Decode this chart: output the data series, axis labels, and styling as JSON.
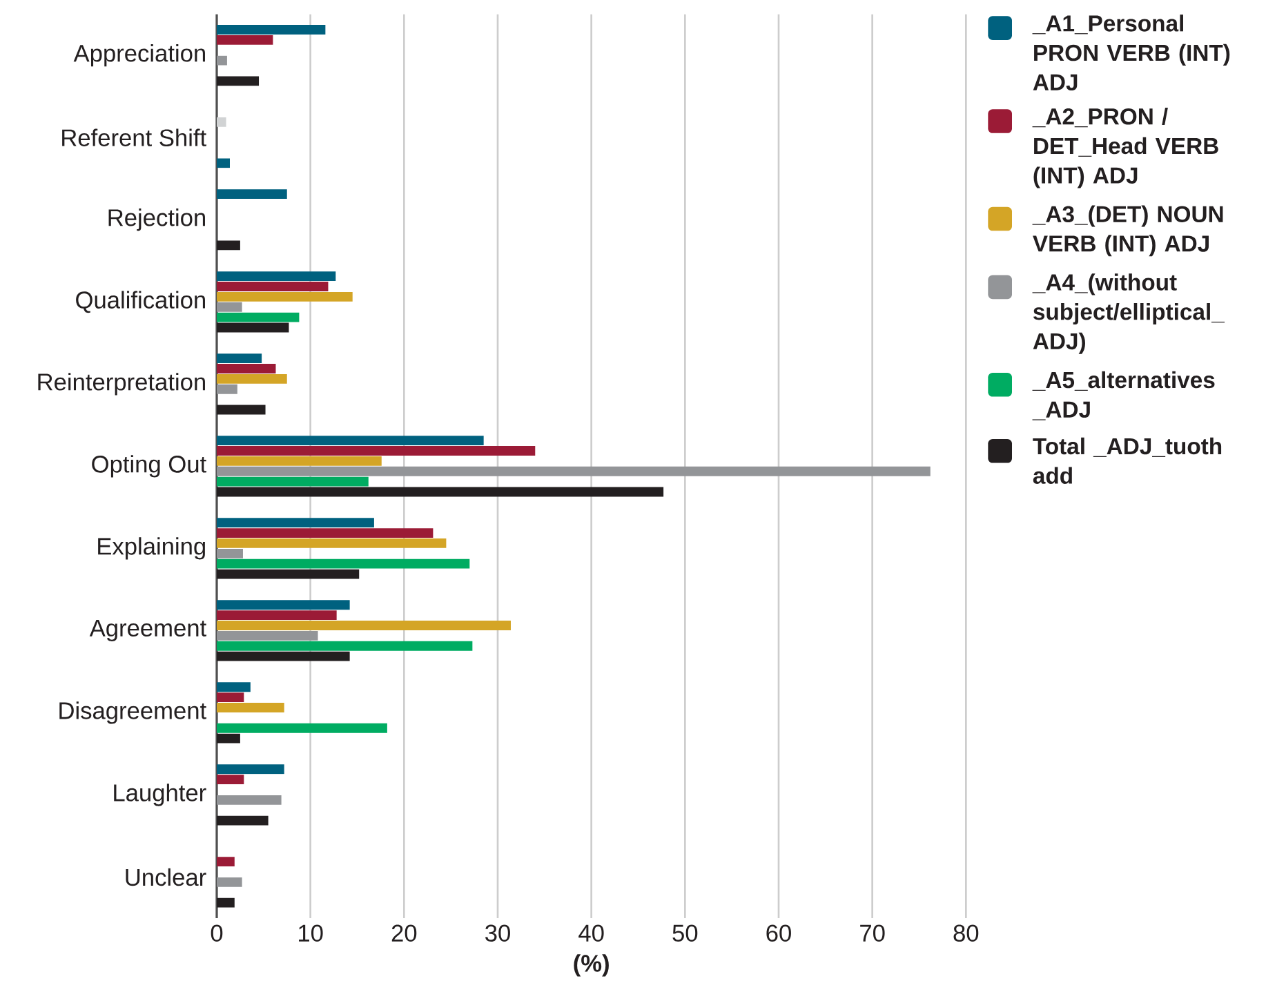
{
  "chart_data": {
    "type": "bar",
    "orientation": "horizontal",
    "xlabel": "(%)",
    "categories": [
      "Appreciation",
      "Referent Shift",
      "Rejection",
      "Qualification",
      "Reinterpretation",
      "Opting Out",
      "Explaining",
      "Agreement",
      "Disagreement",
      "Laughter",
      "Unclear"
    ],
    "series": [
      {
        "name": "_A1_Personal PRON VERB (INT) ADJ",
        "color": "#00617f",
        "values": [
          11.6,
          null,
          7.5,
          12.7,
          4.8,
          28.5,
          16.8,
          14.2,
          3.6,
          7.2,
          null
        ]
      },
      {
        "name": "_A2_PRON / DET_Head VERB (INT) ADJ",
        "color": "#9b1b36",
        "colors": [
          "#9b1b36",
          "#d1d3d4",
          "#9b1b36",
          "#9b1b36",
          "#9b1b36",
          "#9b1b36",
          "#9b1b36",
          "#9b1b36",
          "#9b1b36",
          "#9b1b36",
          "#9b1b36"
        ],
        "values": [
          6.0,
          1.0,
          null,
          11.9,
          6.3,
          34.0,
          23.1,
          12.8,
          2.9,
          2.9,
          1.9
        ]
      },
      {
        "name": "_A3_(DET) NOUN VERB (INT) ADJ",
        "color": "#d4a526",
        "values": [
          null,
          null,
          null,
          14.5,
          7.5,
          17.6,
          24.5,
          31.4,
          7.2,
          null,
          null
        ]
      },
      {
        "name": "_A4_(without subject/elliptical_ ADJ)",
        "color": "#939598",
        "values": [
          1.1,
          null,
          null,
          2.7,
          2.2,
          76.2,
          2.8,
          10.8,
          null,
          6.9,
          2.7
        ]
      },
      {
        "name": "_A5_alternatives _ADJ",
        "color": "#00ac62",
        "values": [
          null,
          null,
          null,
          8.8,
          null,
          16.2,
          27.0,
          27.3,
          18.2,
          null,
          null
        ]
      },
      {
        "name": "Total _ADJ_tuoth add",
        "color": "#231f20",
        "colors": [
          "#231f20",
          "#00617f",
          "#231f20",
          "#231f20",
          "#231f20",
          "#231f20",
          "#231f20",
          "#231f20",
          "#231f20",
          "#231f20",
          "#231f20"
        ],
        "values": [
          4.5,
          1.4,
          2.5,
          7.7,
          5.2,
          47.7,
          15.2,
          14.2,
          2.5,
          5.5,
          1.9
        ]
      }
    ],
    "xlim": [
      0,
      80
    ],
    "xticks": [
      0,
      10,
      20,
      30,
      40,
      50,
      60,
      70,
      80
    ],
    "grid": "x",
    "legend": "right"
  }
}
